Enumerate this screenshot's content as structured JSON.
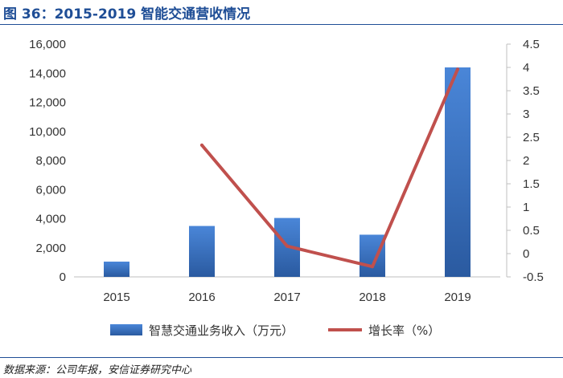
{
  "title": "图 36：2015-2019 智能交通营收情况",
  "source": "数据来源：公司年报，安信证券研究中心",
  "chart_data": {
    "type": "bar",
    "categories": [
      "2015",
      "2016",
      "2017",
      "2018",
      "2019"
    ],
    "series": [
      {
        "name": "智慧交通业务收入（万元）",
        "type": "bar",
        "axis": "left",
        "color": "#3a6fc4",
        "values": [
          1050,
          3500,
          4050,
          2900,
          14400
        ]
      },
      {
        "name": "增长率（%）",
        "type": "line",
        "axis": "right",
        "color": "#c0504d",
        "values": [
          null,
          2.33,
          0.16,
          -0.28,
          3.96
        ]
      }
    ],
    "y_left": {
      "min": 0,
      "max": 16000,
      "ticks": [
        0,
        2000,
        4000,
        6000,
        8000,
        10000,
        12000,
        14000,
        16000
      ],
      "tick_labels": [
        "0",
        "2,000",
        "4,000",
        "6,000",
        "8,000",
        "10,000",
        "12,000",
        "14,000",
        "16,000"
      ]
    },
    "y_right": {
      "min": -0.5,
      "max": 4.5,
      "ticks": [
        -0.5,
        0,
        0.5,
        1,
        1.5,
        2,
        2.5,
        3,
        3.5,
        4,
        4.5
      ],
      "tick_labels": [
        "-0.5",
        "0",
        "0.5",
        "1",
        "1.5",
        "2",
        "2.5",
        "3",
        "3.5",
        "4",
        "4.5"
      ]
    },
    "grid": false,
    "legend_position": "bottom"
  }
}
